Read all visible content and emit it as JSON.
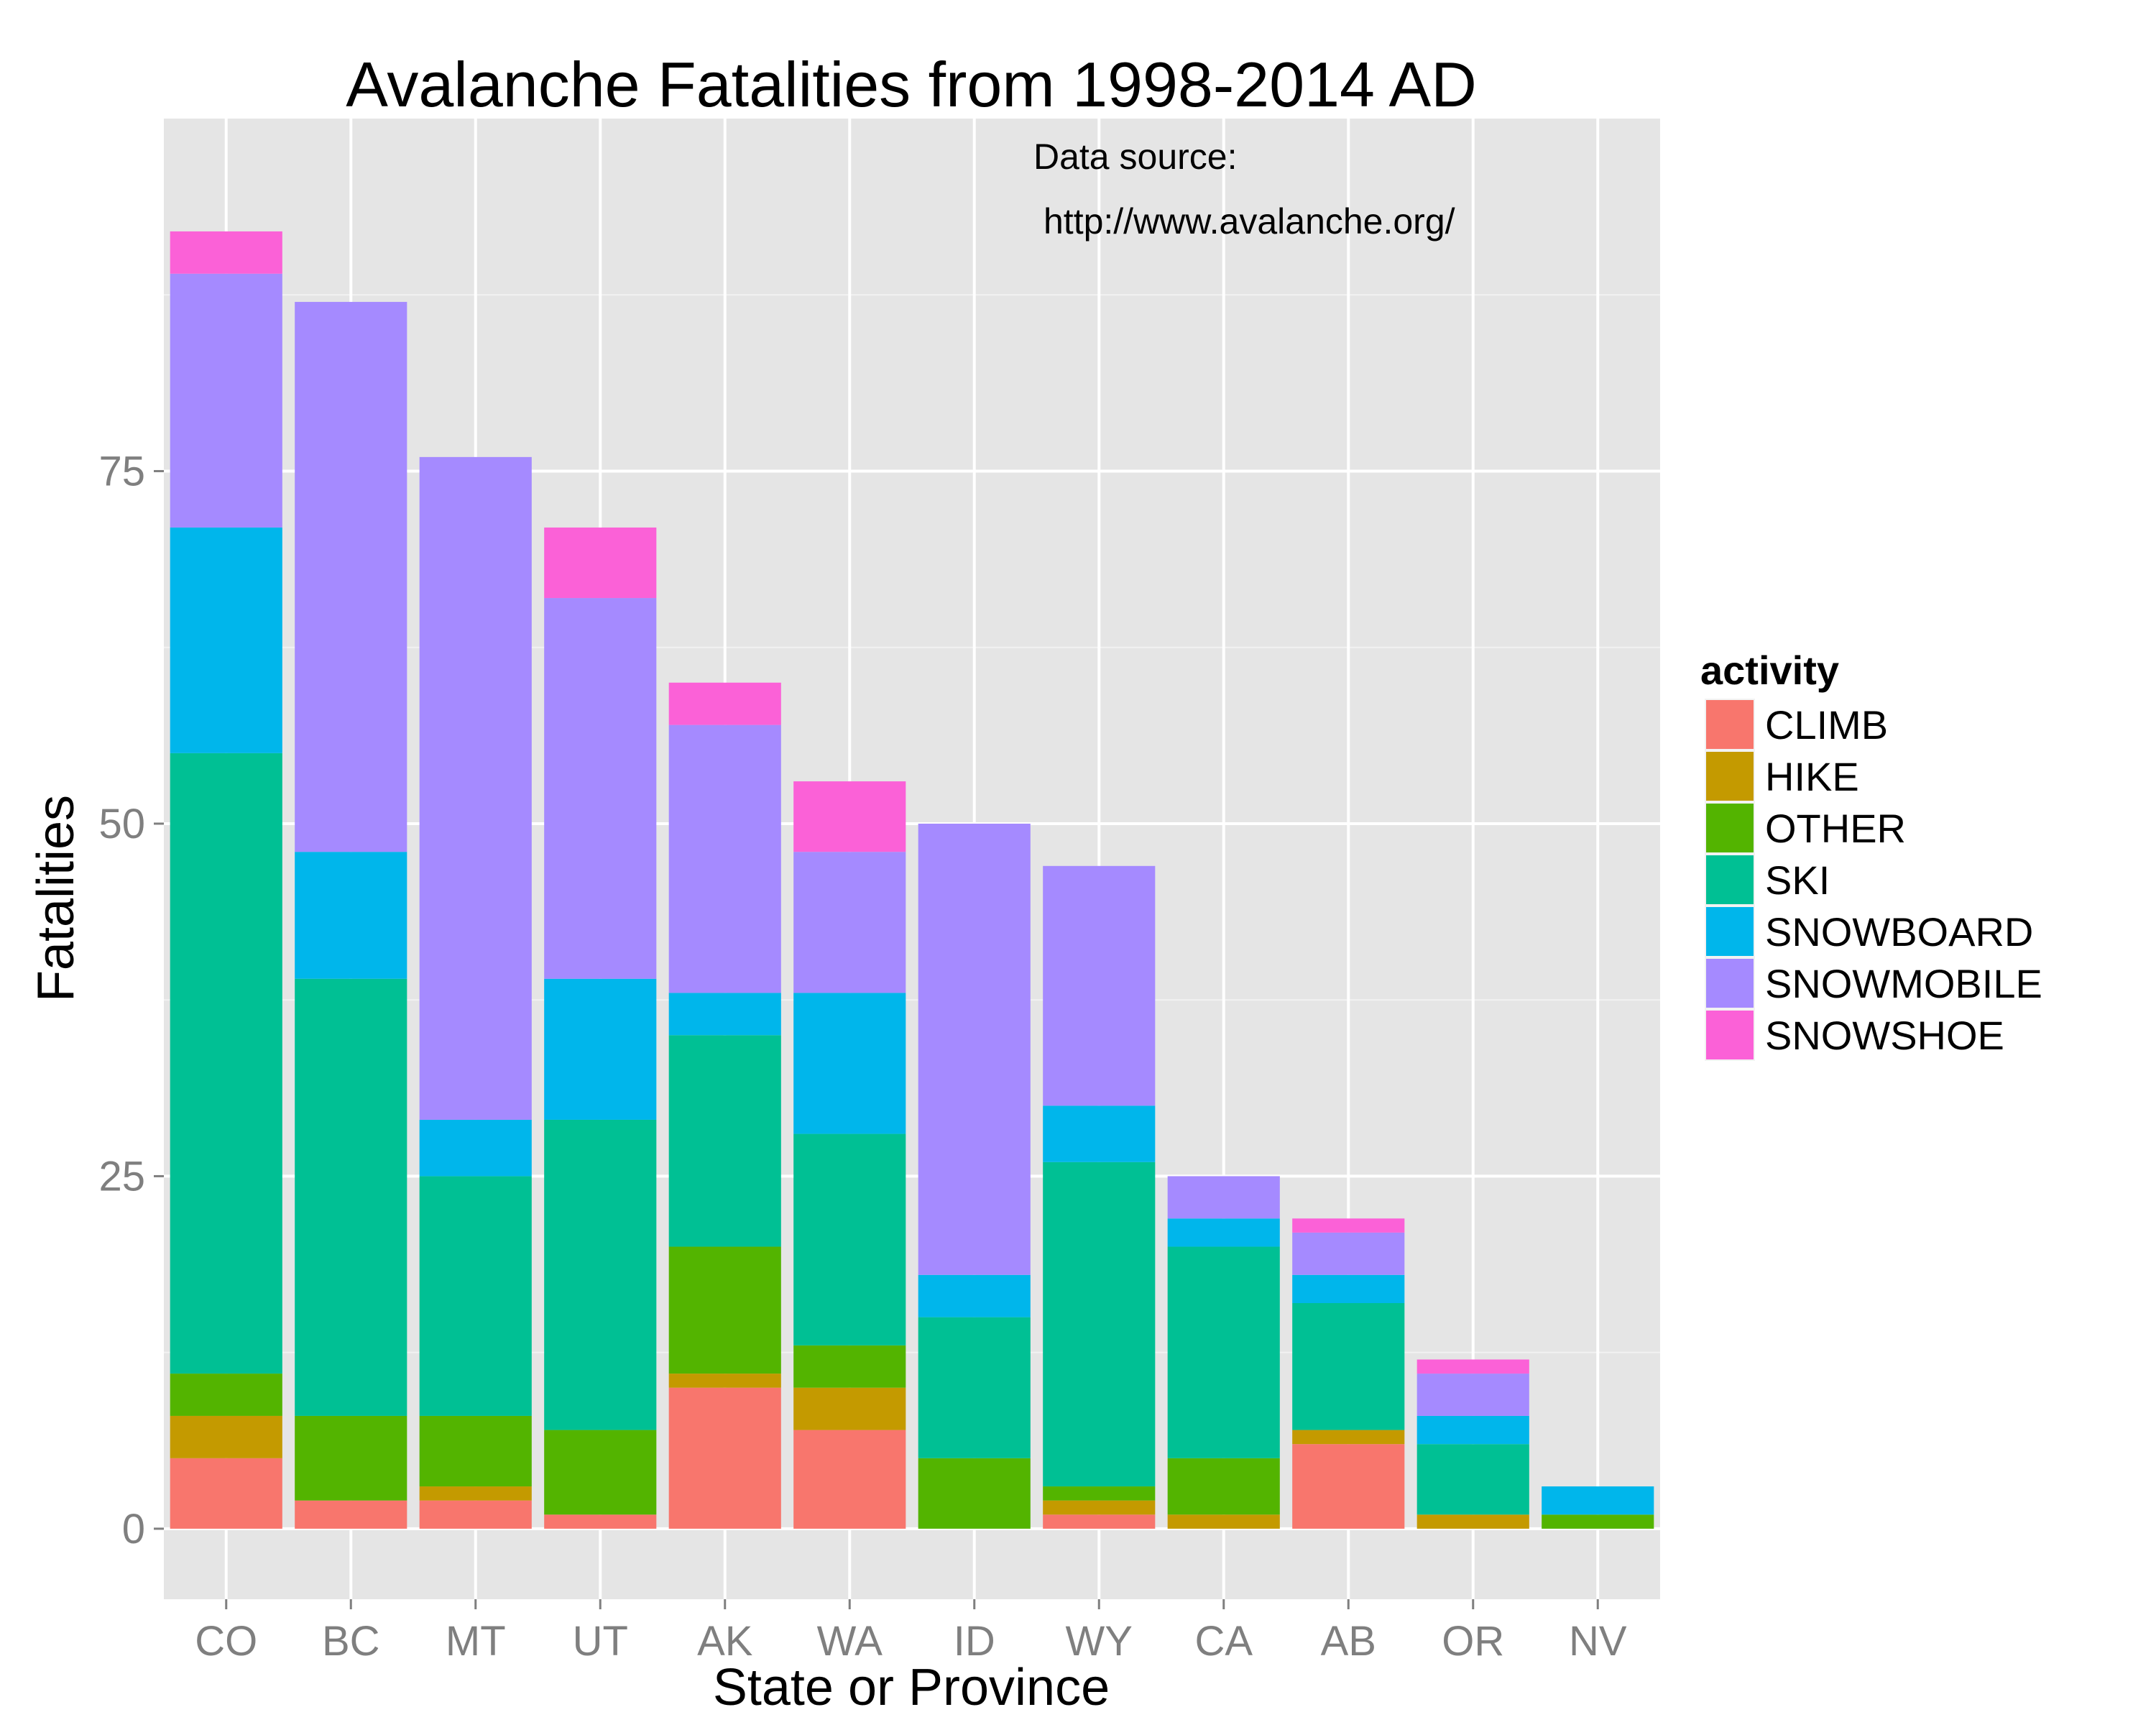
{
  "chart_data": {
    "type": "bar",
    "stacked": true,
    "title": "Avalanche Fatalities from 1998-2014 AD",
    "xlabel": "State or Province",
    "ylabel": "Fatalities",
    "annotation": [
      "Data source:",
      "http://www.avalanche.org/"
    ],
    "categories": [
      "CO",
      "BC",
      "MT",
      "UT",
      "AK",
      "WA",
      "ID",
      "WY",
      "CA",
      "AB",
      "OR",
      "NV"
    ],
    "ylim": [
      -5,
      100
    ],
    "yticks": [
      0,
      25,
      50,
      75
    ],
    "grid": true,
    "legend": {
      "title": "activity",
      "position": "right"
    },
    "series": [
      {
        "name": "CLIMB",
        "color": "#F8766D",
        "values": [
          5,
          2,
          2,
          1,
          10,
          7,
          0,
          1,
          0,
          6,
          0,
          0
        ]
      },
      {
        "name": "HIKE",
        "color": "#C49A00",
        "values": [
          3,
          0,
          1,
          0,
          1,
          3,
          0,
          1,
          1,
          1,
          1,
          0
        ]
      },
      {
        "name": "OTHER",
        "color": "#53B400",
        "values": [
          3,
          6,
          5,
          6,
          9,
          3,
          5,
          1,
          4,
          0,
          0,
          1
        ]
      },
      {
        "name": "SKI",
        "color": "#00C094",
        "values": [
          44,
          31,
          17,
          22,
          15,
          15,
          10,
          23,
          15,
          9,
          5,
          0
        ]
      },
      {
        "name": "SNOWBOARD",
        "color": "#00B6EB",
        "values": [
          16,
          9,
          4,
          10,
          3,
          10,
          3,
          4,
          2,
          2,
          2,
          2
        ]
      },
      {
        "name": "SNOWMOBILE",
        "color": "#A58AFF",
        "values": [
          18,
          39,
          47,
          27,
          19,
          10,
          32,
          17,
          3,
          3,
          3,
          0
        ]
      },
      {
        "name": "SNOWSHOE",
        "color": "#FB61D7",
        "values": [
          3,
          0,
          0,
          5,
          3,
          5,
          0,
          0,
          0,
          1,
          1,
          0
        ]
      }
    ]
  }
}
